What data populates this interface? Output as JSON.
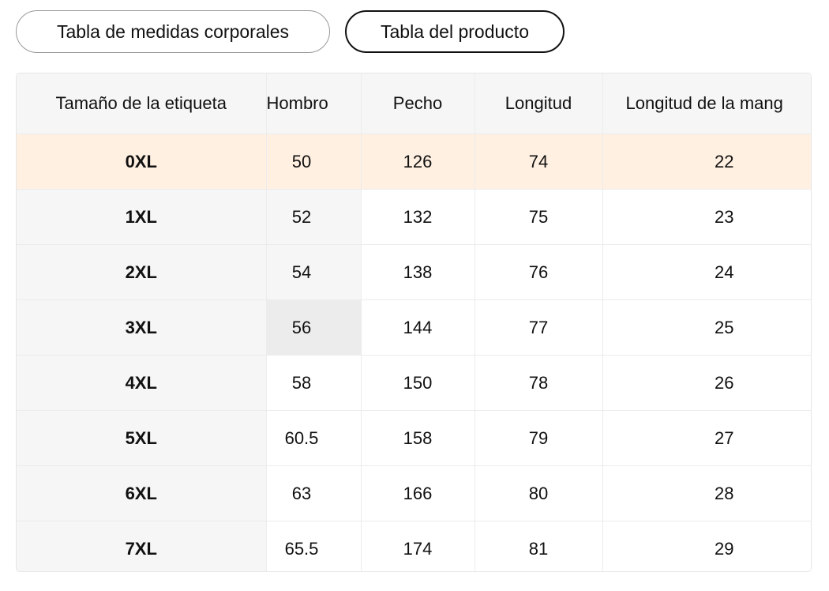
{
  "tabs": [
    "Tabla de medidas corporales",
    "Tabla del producto"
  ],
  "table": {
    "header": [
      "Tamaño de la etiqueta",
      "Hombro",
      "Pecho",
      "Longitud",
      "Longitud de la mang"
    ],
    "rows": [
      [
        "0XL",
        50,
        126,
        74,
        22
      ],
      [
        "1XL",
        52,
        132,
        75,
        23
      ],
      [
        "2XL",
        54,
        138,
        76,
        24
      ],
      [
        "3XL",
        56,
        144,
        77,
        25
      ],
      [
        "4XL",
        58,
        150,
        78,
        26
      ],
      [
        "5XL",
        60.5,
        158,
        79,
        27
      ],
      [
        "6XL",
        63,
        166,
        80,
        28
      ],
      [
        "7XL",
        65.5,
        174,
        81,
        29
      ]
    ]
  }
}
